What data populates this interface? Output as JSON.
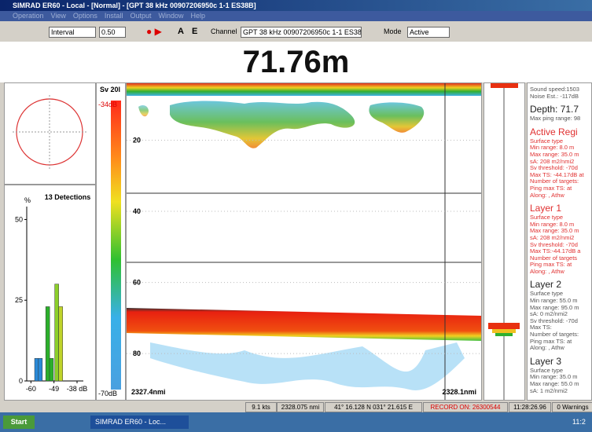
{
  "title_bar": {
    "title": "SIMRAD ER60 - Local - [Normal] - [GPT  38 kHz 00907206950c 1-1 ES38B]"
  },
  "menu": [
    "Operation",
    "View",
    "Options",
    "Install",
    "Output",
    "Window",
    "Help"
  ],
  "toolbar": {
    "mode_select": "Interval",
    "interval": "0.50",
    "a": "A",
    "e": "E",
    "channel_label": "Channel",
    "channel": "GPT  38 kHz 00907206950c 1-1 ES38B",
    "mode_label": "Mode",
    "mode": "Active"
  },
  "depth": "71.76m",
  "histogram": {
    "title": "13 Detections",
    "y_unit": "%",
    "ylim": [
      0,
      54
    ],
    "yticks": [
      0,
      25,
      50
    ],
    "xlim": [
      -62,
      -35
    ],
    "xticks": [
      -60,
      -49,
      {
        "value": -38,
        "label": "-38 dB"
      }
    ],
    "x": [
      -57.3,
      -55.5,
      -52,
      -50.2,
      -47.7,
      -45.8
    ],
    "values": [
      7,
      7,
      23,
      7,
      30,
      23
    ],
    "colors": [
      "#2a8ad8",
      "#2a8ad8",
      "#2bb02b",
      "#2bb02b",
      "#8ccf2a",
      "#c0d42a"
    ]
  },
  "color_scale": {
    "title": "Sv 20l",
    "top": "-34dB",
    "bottom": "-70dB"
  },
  "echogram": {
    "ylim": [
      4,
      93
    ],
    "depth_ticks": [
      20,
      40,
      60,
      80
    ],
    "start": "2327.4nmi",
    "end": "2328.1nmi"
  },
  "info_panel": [
    {
      "title": null,
      "lines": [
        "Sound speed:1503",
        "Noise Est.: -117dB"
      ]
    },
    {
      "title": "Depth: 71.7",
      "lines": [
        "Max ping range: 98"
      ]
    },
    {
      "title": "Active Regi",
      "lines": [
        "Surface type",
        "Min range: 8.0 m",
        "Max range: 35.0 m",
        "sA: 208 m2/nmi2",
        "Sv threshold: -70d",
        "Max TS: -44.17dB at",
        "Number of targets:",
        "Ping max TS:     at",
        "Along:     , Athw"
      ]
    },
    {
      "title": "Layer 1",
      "lines": [
        "Surface type",
        "Min range: 8.0 m",
        "Max range: 35.0 m",
        "sA: 208 m2/nmi2",
        "Sv threshold: -70d",
        "Max TS:-44.17dB a",
        "Number of targets",
        "Ping max TS:     at",
        "Along:     , Athw"
      ]
    },
    {
      "title": "Layer 2",
      "lines": [
        "Surface type",
        "Min range: 55.0 m",
        "Max range: 95.0 m",
        "sA: 0 m2/nmi2",
        "Sv threshold: -70d",
        "Max TS:",
        "Number of targets:",
        "Ping max TS:     at",
        "Along:     , Athw"
      ]
    },
    {
      "title": "Layer 3",
      "lines": [
        "Surface type",
        "Min range: 35.0 m",
        "Max range: 55.0 m",
        "sA: 1 m2/nmi2"
      ]
    }
  ],
  "status_bar": [
    "9.1 kts",
    "2328.075 nmi",
    "41° 16.128 N  031° 21.615 E",
    "RECORD ON: 26300544",
    "11:28:26.96",
    "0 Warnings"
  ],
  "taskbar": {
    "start": "Start",
    "task": "SIMRAD ER60 - Loc...",
    "clock": "11:2"
  }
}
